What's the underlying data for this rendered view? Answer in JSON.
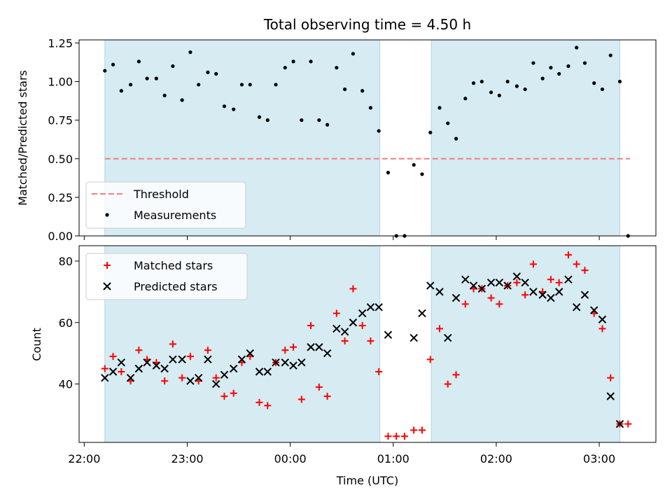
{
  "chart_data": [
    {
      "type": "scatter",
      "title": "Total observing time = 4.50 h",
      "ylabel": "Matched/Predicted stars",
      "xlabel": "",
      "x_unit": "hours since 22:00 UTC",
      "xlim": [
        -0.05,
        5.55
      ],
      "ylim": [
        0.0,
        1.27
      ],
      "yticks": [
        0.0,
        0.25,
        0.5,
        0.75,
        1.0,
        1.25
      ],
      "ytick_labels": [
        "0.00",
        "0.25",
        "0.50",
        "0.75",
        "1.00",
        "1.25"
      ],
      "grid": false,
      "shaded_intervals": [
        [
          0.2,
          2.87
        ],
        [
          3.37,
          5.2
        ]
      ],
      "threshold_line": {
        "y": 0.5,
        "x_range": [
          0.2,
          5.3
        ],
        "color": "#f08080",
        "style": "dashed",
        "name": "Threshold"
      },
      "legend": {
        "position": "lower-left",
        "entries": [
          "Threshold",
          "Measurements"
        ]
      },
      "series": [
        {
          "name": "Measurements",
          "marker": "dot",
          "color": "#000000",
          "points": [
            [
              0.2,
              1.07
            ],
            [
              0.28,
              1.11
            ],
            [
              0.36,
              0.94
            ],
            [
              0.45,
              0.98
            ],
            [
              0.53,
              1.13
            ],
            [
              0.61,
              1.02
            ],
            [
              0.7,
              1.02
            ],
            [
              0.78,
              0.91
            ],
            [
              0.86,
              1.1
            ],
            [
              0.95,
              0.88
            ],
            [
              1.03,
              1.19
            ],
            [
              1.11,
              0.98
            ],
            [
              1.2,
              1.06
            ],
            [
              1.28,
              1.05
            ],
            [
              1.36,
              0.84
            ],
            [
              1.45,
              0.82
            ],
            [
              1.53,
              0.98
            ],
            [
              1.61,
              0.98
            ],
            [
              1.7,
              0.77
            ],
            [
              1.78,
              0.75
            ],
            [
              1.86,
              0.98
            ],
            [
              1.95,
              1.09
            ],
            [
              2.03,
              1.13
            ],
            [
              2.11,
              0.75
            ],
            [
              2.2,
              1.13
            ],
            [
              2.28,
              0.75
            ],
            [
              2.36,
              0.72
            ],
            [
              2.45,
              1.09
            ],
            [
              2.53,
              0.95
            ],
            [
              2.61,
              1.18
            ],
            [
              2.7,
              0.94
            ],
            [
              2.78,
              0.83
            ],
            [
              2.86,
              0.68
            ],
            [
              2.95,
              0.41
            ],
            [
              3.03,
              0.0
            ],
            [
              3.11,
              0.0
            ],
            [
              3.2,
              0.46
            ],
            [
              3.28,
              0.4
            ],
            [
              3.36,
              0.67
            ],
            [
              3.45,
              0.83
            ],
            [
              3.53,
              0.73
            ],
            [
              3.61,
              0.63
            ],
            [
              3.7,
              0.89
            ],
            [
              3.78,
              0.99
            ],
            [
              3.86,
              1.0
            ],
            [
              3.95,
              0.93
            ],
            [
              4.03,
              0.91
            ],
            [
              4.11,
              1.0
            ],
            [
              4.2,
              0.97
            ],
            [
              4.28,
              0.95
            ],
            [
              4.36,
              1.12
            ],
            [
              4.45,
              1.02
            ],
            [
              4.53,
              1.09
            ],
            [
              4.61,
              1.05
            ],
            [
              4.7,
              1.1
            ],
            [
              4.78,
              1.22
            ],
            [
              4.86,
              1.12
            ],
            [
              4.95,
              0.99
            ],
            [
              5.03,
              0.95
            ],
            [
              5.11,
              1.17
            ],
            [
              5.2,
              1.0
            ],
            [
              5.28,
              0.0
            ]
          ]
        }
      ]
    },
    {
      "type": "scatter",
      "title": "",
      "ylabel": "Count",
      "xlabel": "Time (UTC)",
      "x_unit": "hours since 22:00 UTC",
      "xlim": [
        -0.05,
        5.55
      ],
      "ylim": [
        21,
        85
      ],
      "yticks": [
        40,
        60,
        80
      ],
      "ytick_labels": [
        "40",
        "60",
        "80"
      ],
      "xticks": [
        0,
        1,
        2,
        3,
        4,
        5
      ],
      "xtick_labels": [
        "22:00",
        "23:00",
        "00:00",
        "01:00",
        "02:00",
        "03:00"
      ],
      "grid": false,
      "shaded_intervals": [
        [
          0.2,
          2.87
        ],
        [
          3.37,
          5.2
        ]
      ],
      "legend": {
        "position": "top-left",
        "entries": [
          "Matched stars",
          "Predicted stars"
        ]
      },
      "series": [
        {
          "name": "Matched stars",
          "marker": "plus",
          "color": "#ff0000",
          "points": [
            [
              0.2,
              45
            ],
            [
              0.28,
              49
            ],
            [
              0.36,
              44
            ],
            [
              0.45,
              41
            ],
            [
              0.53,
              51
            ],
            [
              0.61,
              48
            ],
            [
              0.7,
              47
            ],
            [
              0.78,
              41
            ],
            [
              0.86,
              53
            ],
            [
              0.95,
              42
            ],
            [
              1.03,
              49
            ],
            [
              1.11,
              41
            ],
            [
              1.2,
              51
            ],
            [
              1.28,
              42
            ],
            [
              1.36,
              36
            ],
            [
              1.45,
              37
            ],
            [
              1.53,
              47
            ],
            [
              1.61,
              49
            ],
            [
              1.7,
              34
            ],
            [
              1.78,
              33
            ],
            [
              1.86,
              47
            ],
            [
              1.95,
              51
            ],
            [
              2.03,
              52
            ],
            [
              2.11,
              35
            ],
            [
              2.2,
              59
            ],
            [
              2.28,
              39
            ],
            [
              2.36,
              36
            ],
            [
              2.45,
              63
            ],
            [
              2.53,
              54
            ],
            [
              2.61,
              71
            ],
            [
              2.7,
              59
            ],
            [
              2.78,
              54
            ],
            [
              2.86,
              44
            ],
            [
              2.95,
              23
            ],
            [
              3.03,
              23
            ],
            [
              3.11,
              23
            ],
            [
              3.2,
              25
            ],
            [
              3.28,
              25
            ],
            [
              3.36,
              48
            ],
            [
              3.45,
              58
            ],
            [
              3.53,
              40
            ],
            [
              3.61,
              43
            ],
            [
              3.7,
              66
            ],
            [
              3.78,
              71
            ],
            [
              3.86,
              71
            ],
            [
              3.95,
              68
            ],
            [
              4.03,
              66
            ],
            [
              4.11,
              72
            ],
            [
              4.2,
              73
            ],
            [
              4.28,
              69
            ],
            [
              4.36,
              79
            ],
            [
              4.45,
              70
            ],
            [
              4.53,
              74
            ],
            [
              4.61,
              73
            ],
            [
              4.7,
              82
            ],
            [
              4.78,
              79
            ],
            [
              4.86,
              77
            ],
            [
              4.95,
              63
            ],
            [
              5.03,
              58
            ],
            [
              5.11,
              42
            ],
            [
              5.2,
              27
            ],
            [
              5.28,
              27
            ]
          ]
        },
        {
          "name": "Predicted stars",
          "marker": "x",
          "color": "#000000",
          "points": [
            [
              0.2,
              42
            ],
            [
              0.28,
              44
            ],
            [
              0.36,
              47
            ],
            [
              0.45,
              42
            ],
            [
              0.53,
              45
            ],
            [
              0.61,
              47
            ],
            [
              0.7,
              46
            ],
            [
              0.78,
              45
            ],
            [
              0.86,
              48
            ],
            [
              0.95,
              48
            ],
            [
              1.03,
              41
            ],
            [
              1.11,
              42
            ],
            [
              1.2,
              48
            ],
            [
              1.28,
              40
            ],
            [
              1.36,
              43
            ],
            [
              1.45,
              45
            ],
            [
              1.53,
              48
            ],
            [
              1.61,
              50
            ],
            [
              1.7,
              44
            ],
            [
              1.78,
              44
            ],
            [
              1.86,
              47
            ],
            [
              1.95,
              47
            ],
            [
              2.03,
              46
            ],
            [
              2.11,
              47
            ],
            [
              2.2,
              52
            ],
            [
              2.28,
              52
            ],
            [
              2.36,
              50
            ],
            [
              2.45,
              58
            ],
            [
              2.53,
              57
            ],
            [
              2.61,
              60
            ],
            [
              2.7,
              63
            ],
            [
              2.78,
              65
            ],
            [
              2.86,
              65
            ],
            [
              2.95,
              56
            ],
            [
              3.2,
              55
            ],
            [
              3.28,
              63
            ],
            [
              3.36,
              72
            ],
            [
              3.45,
              70
            ],
            [
              3.53,
              55
            ],
            [
              3.61,
              68
            ],
            [
              3.7,
              74
            ],
            [
              3.78,
              72
            ],
            [
              3.86,
              71
            ],
            [
              3.95,
              73
            ],
            [
              4.03,
              73
            ],
            [
              4.11,
              72
            ],
            [
              4.2,
              75
            ],
            [
              4.28,
              73
            ],
            [
              4.36,
              70
            ],
            [
              4.45,
              69
            ],
            [
              4.53,
              68
            ],
            [
              4.61,
              70
            ],
            [
              4.7,
              74
            ],
            [
              4.78,
              65
            ],
            [
              4.86,
              69
            ],
            [
              4.95,
              64
            ],
            [
              5.03,
              61
            ],
            [
              5.11,
              36
            ],
            [
              5.2,
              27
            ]
          ]
        }
      ]
    }
  ],
  "colors": {
    "shade": "#add8e6",
    "threshold": "#f08080",
    "matched": "#ff0000",
    "predicted": "#000000",
    "measurements": "#000000"
  }
}
